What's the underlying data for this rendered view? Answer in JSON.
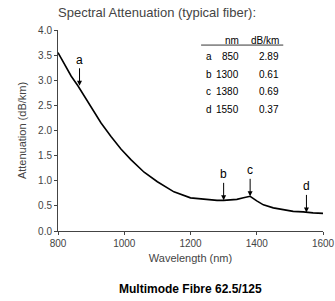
{
  "chart_data": {
    "type": "line",
    "title": "Spectral Attenuation (typical fiber):",
    "subtitle": "Multimode Fibre 62.5/125",
    "xlabel": "Wavelength (nm)",
    "ylabel": "Attenuation (dB/km)",
    "x": [
      800,
      820,
      840,
      860,
      880,
      900,
      930,
      960,
      990,
      1020,
      1060,
      1100,
      1150,
      1200,
      1250,
      1280,
      1300,
      1320,
      1340,
      1360,
      1380,
      1400,
      1420,
      1450,
      1480,
      1510,
      1540,
      1550,
      1570,
      1600
    ],
    "values": [
      3.55,
      3.3,
      3.08,
      2.89,
      2.68,
      2.46,
      2.15,
      1.88,
      1.63,
      1.42,
      1.17,
      0.98,
      0.78,
      0.66,
      0.62,
      0.61,
      0.61,
      0.62,
      0.63,
      0.66,
      0.69,
      0.6,
      0.52,
      0.46,
      0.42,
      0.39,
      0.38,
      0.37,
      0.36,
      0.35
    ],
    "color": "#000000",
    "xlim": [
      800,
      1600
    ],
    "ylim": [
      0.0,
      4.0
    ],
    "xticks": [
      800,
      1000,
      1200,
      1400,
      1600
    ],
    "yticks": [
      {
        "value": 0,
        "label": "0.0"
      },
      0.5,
      {
        "value": 1,
        "label": "1.0"
      },
      1.5,
      {
        "value": 2,
        "label": "2.0"
      },
      2.5,
      {
        "value": 3,
        "label": "3.0"
      },
      3.5,
      {
        "value": 4,
        "label": "4.0"
      }
    ],
    "grid": false,
    "annotations": [
      {
        "text": "a",
        "x": 865,
        "y": 2.89
      },
      {
        "text": "b",
        "x": 1300,
        "y": 0.61
      },
      {
        "text": "c",
        "x": 1380,
        "y": 0.69
      },
      {
        "text": "d",
        "x": 1550,
        "y": 0.37
      }
    ],
    "table": {
      "header": [
        "nm",
        "dB/km"
      ],
      "rows": [
        [
          "a",
          "850",
          "2.89"
        ],
        [
          "b",
          "1300",
          "0.61"
        ],
        [
          "c",
          "1380",
          "0.69"
        ],
        [
          "d",
          "1550",
          "0.37"
        ]
      ]
    }
  }
}
